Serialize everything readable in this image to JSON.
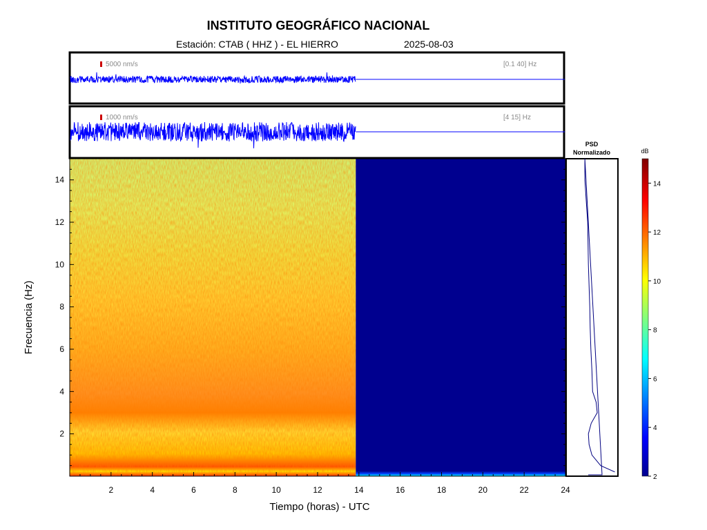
{
  "header": {
    "title": "INSTITUTO GEOGRÁFICO NACIONAL",
    "station_text": "Estación:  CTAB ( HHZ ) - EL HIERRO",
    "date": "2025-08-03"
  },
  "chart_data": [
    {
      "type": "line",
      "panel": "seismogram-broadband",
      "scale_label": "5000 nm/s",
      "band_label": "[0.1 40] Hz",
      "xlim": [
        0,
        24
      ],
      "data_end_hour": 13.85,
      "color": "#0000ff",
      "scale_color": "#cc0000"
    },
    {
      "type": "line",
      "panel": "seismogram-filtered",
      "scale_label": "1000 nm/s",
      "band_label": "[4 15] Hz",
      "xlim": [
        0,
        24
      ],
      "data_end_hour": 13.85,
      "color": "#0000ff",
      "scale_color": "#cc0000"
    },
    {
      "type": "heatmap",
      "panel": "spectrogram",
      "xlabel": "Tiempo (horas) - UTC",
      "ylabel": "Frecuencia  (Hz)",
      "xlim": [
        0,
        24
      ],
      "ylim": [
        0,
        15
      ],
      "x_ticks": [
        "2",
        "4",
        "6",
        "8",
        "10",
        "12",
        "14",
        "16",
        "18",
        "20",
        "22",
        "24"
      ],
      "y_ticks": [
        "2",
        "4",
        "6",
        "8",
        "10",
        "12",
        "14"
      ],
      "data_end_hour": 13.85,
      "empty_color": "#00008f"
    },
    {
      "type": "line",
      "panel": "psd",
      "title_line1": "PSD",
      "title_line2": "Normalizado",
      "color": "#000080",
      "frequency_hz": [
        0.2,
        0.5,
        1.0,
        1.5,
        2.0,
        2.5,
        3.0,
        3.5,
        4.0,
        5.0,
        6.0,
        7.0,
        8.0,
        9.0,
        10.0,
        11.0,
        12.0,
        13.0,
        14.0,
        15.0
      ],
      "relative_level": [
        0.95,
        0.55,
        0.3,
        0.22,
        0.2,
        0.28,
        0.45,
        0.42,
        0.32,
        0.3,
        0.27,
        0.25,
        0.24,
        0.22,
        0.2,
        0.19,
        0.18,
        0.14,
        0.1,
        0.1
      ]
    }
  ],
  "colorbar": {
    "unit": "dB",
    "range": [
      2,
      15
    ],
    "ticks": [
      "2",
      "4",
      "6",
      "8",
      "10",
      "12",
      "14"
    ],
    "stops": [
      "#00008f",
      "#0000ff",
      "#00ffff",
      "#ffff00",
      "#ff0000",
      "#800000"
    ]
  }
}
